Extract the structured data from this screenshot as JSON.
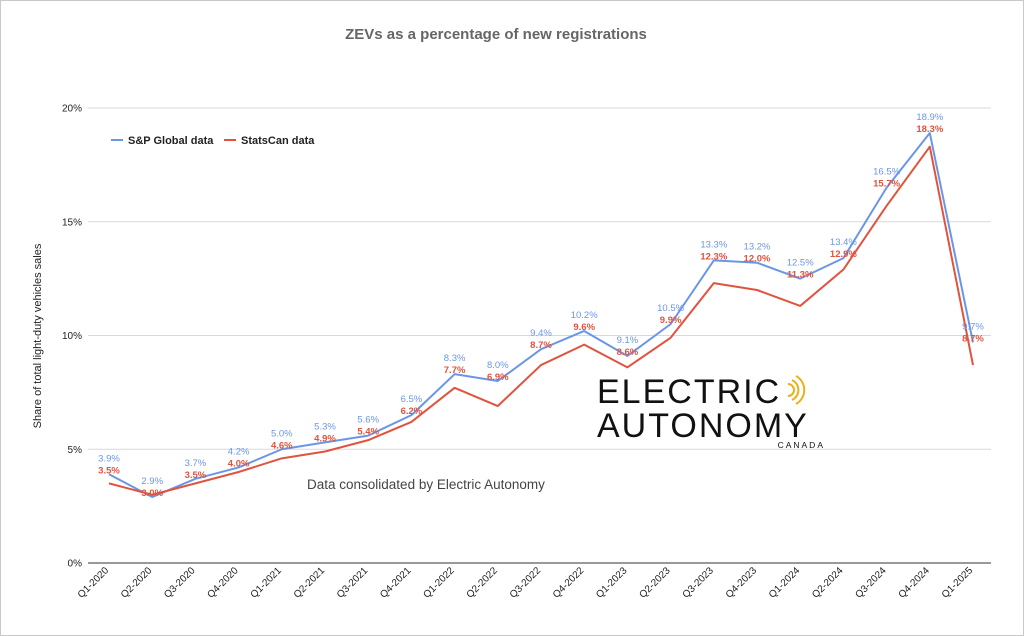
{
  "chart_data": {
    "type": "line",
    "title": "ZEVs as a percentage of new registrations",
    "xlabel": "",
    "ylabel": "Share of total light-duty vehicles sales",
    "ylim": [
      0,
      20
    ],
    "yticks": [
      "0%",
      "5%",
      "10%",
      "15%",
      "20%"
    ],
    "ytick_values": [
      0,
      5,
      10,
      15,
      20
    ],
    "grid": "horizontal",
    "legend_position": "top-left",
    "categories": [
      "Q1-2020",
      "Q2-2020",
      "Q3-2020",
      "Q4-2020",
      "Q1-2021",
      "Q2-2021",
      "Q3-2021",
      "Q4-2021",
      "Q1-2022",
      "Q2-2022",
      "Q3-2022",
      "Q4-2022",
      "Q1-2023",
      "Q2-2023",
      "Q3-2023",
      "Q4-2023",
      "Q1-2024",
      "Q2-2024",
      "Q3-2024",
      "Q4-2024",
      "Q1-2025"
    ],
    "series": [
      {
        "name": "S&P Global data",
        "color": "#6b96e8",
        "values": [
          3.9,
          2.9,
          3.7,
          4.2,
          5.0,
          5.3,
          5.6,
          6.5,
          8.3,
          8.0,
          9.4,
          10.2,
          9.1,
          10.5,
          13.3,
          13.2,
          12.5,
          13.4,
          16.5,
          18.9,
          9.7
        ],
        "labels": [
          "3.9%",
          "2.9%",
          "3.7%",
          "4.2%",
          "5.0%",
          "5.3%",
          "5.6%",
          "6.5%",
          "8.3%",
          "8.0%",
          "9.4%",
          "10.2%",
          "9.1%",
          "10.5%",
          "13.3%",
          "13.2%",
          "12.5%",
          "13.4%",
          "16.5%",
          "18.9%",
          "9.7%"
        ]
      },
      {
        "name": "StatsCan data",
        "color": "#e0533f",
        "values": [
          3.5,
          3.0,
          3.5,
          4.0,
          4.6,
          4.9,
          5.4,
          6.2,
          7.7,
          6.9,
          8.7,
          9.6,
          8.6,
          9.9,
          12.3,
          12.0,
          11.3,
          12.9,
          15.7,
          18.3,
          8.7
        ],
        "labels": [
          "3.5%",
          "3.0%",
          "3.5%",
          "4.0%",
          "4.6%",
          "4.9%",
          "5.4%",
          "6.2%",
          "7.7%",
          "6.9%",
          "8.7%",
          "9.6%",
          "8.6%",
          "9.9%",
          "12.3%",
          "12.0%",
          "11.3%",
          "12.9%",
          "15.7%",
          "18.3%",
          "8.7%"
        ]
      }
    ],
    "annotation": "Data consolidated by Electric Autonomy"
  },
  "logo": {
    "line1": "ELECTRIC",
    "line2": "AUTONOMY",
    "line3": "CANADA",
    "icon": "signal-waves-icon",
    "accent": "#e8b21a"
  }
}
